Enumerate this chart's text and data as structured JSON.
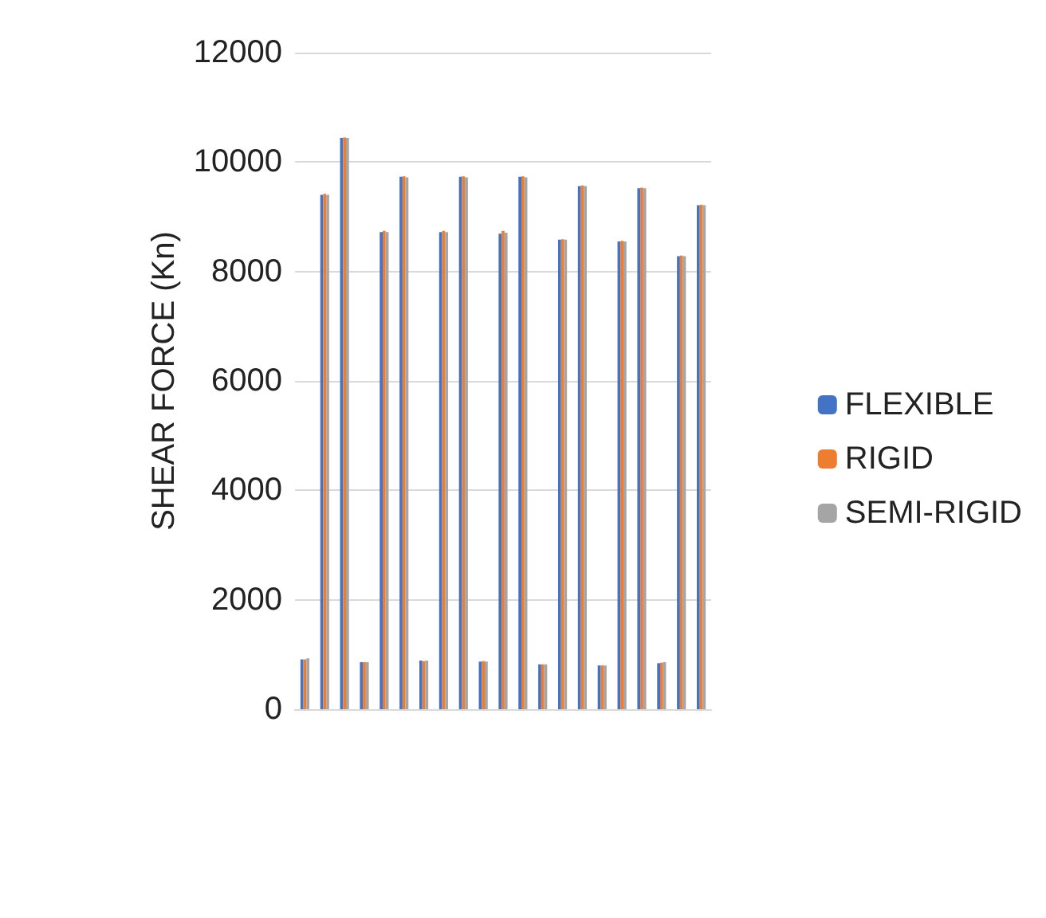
{
  "chart_data": {
    "type": "bar",
    "ylabel": "SHEAR FORCE (Kn)",
    "categories": [
      null,
      null,
      null,
      null,
      null,
      null,
      null,
      null,
      null,
      null,
      null,
      null,
      null,
      null,
      null,
      null,
      null,
      null,
      null,
      null,
      null
    ],
    "series": [
      {
        "name": "FLEXIBLE",
        "color": "#4472c4",
        "values": [
          910,
          9400,
          10440,
          860,
          8720,
          9730,
          890,
          8720,
          9730,
          870,
          8690,
          9730,
          820,
          8580,
          9560,
          800,
          8550,
          9520,
          840,
          8280,
          9210
        ]
      },
      {
        "name": "RIGID",
        "color": "#ed7d31",
        "values": [
          910,
          9420,
          10450,
          860,
          8740,
          9740,
          880,
          8740,
          9740,
          880,
          8740,
          9740,
          820,
          8590,
          9570,
          800,
          8560,
          9530,
          850,
          8290,
          9220
        ]
      },
      {
        "name": "SEMI-RIGID",
        "color": "#a5a5a5",
        "values": [
          930,
          9400,
          10440,
          860,
          8720,
          9720,
          890,
          8720,
          9720,
          870,
          8710,
          9720,
          820,
          8580,
          9560,
          800,
          8550,
          9520,
          860,
          8280,
          9210
        ]
      }
    ],
    "ylim": [
      0,
      12000
    ],
    "yticks": [
      0,
      2000,
      4000,
      6000,
      8000,
      10000,
      12000
    ],
    "grid": "y",
    "legend": "right"
  }
}
